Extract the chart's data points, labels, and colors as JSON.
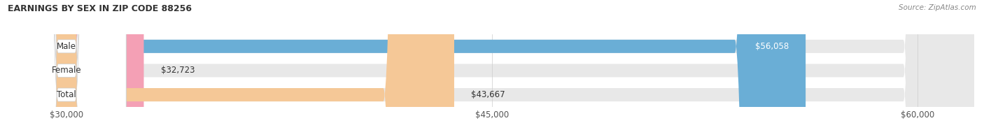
{
  "title": "EARNINGS BY SEX IN ZIP CODE 88256",
  "source": "Source: ZipAtlas.com",
  "categories": [
    "Male",
    "Female",
    "Total"
  ],
  "values": [
    56058,
    32723,
    43667
  ],
  "bar_colors": [
    "#6aaed6",
    "#f4a0b5",
    "#f5c897"
  ],
  "bar_bg_color": "#e8e8e8",
  "xmin": 28000,
  "xmax": 62000,
  "xticks": [
    30000,
    45000,
    60000
  ],
  "xtick_labels": [
    "$30,000",
    "$45,000",
    "$60,000"
  ],
  "value_labels": [
    "$56,058",
    "$32,723",
    "$43,667"
  ],
  "figsize": [
    14.06,
    1.96
  ],
  "dpi": 100,
  "background_color": "#ffffff",
  "title_fontsize": 9,
  "bar_height": 0.55,
  "label_fontsize": 8.5,
  "value_fontsize": 8.5,
  "tick_fontsize": 8.5
}
